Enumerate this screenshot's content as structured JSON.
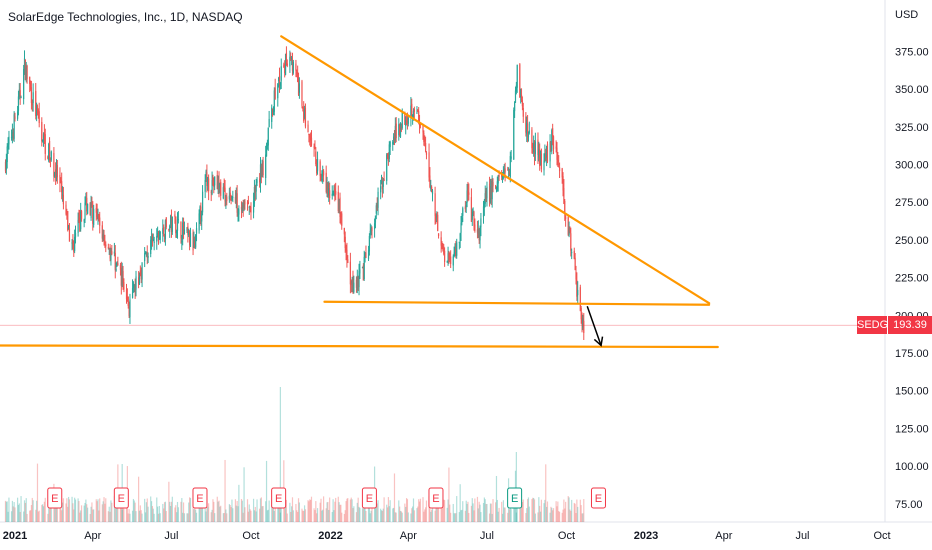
{
  "header": {
    "title": "SolarEdge Technologies, Inc., 1D, NASDAQ"
  },
  "price_axis": {
    "currency": "USD"
  },
  "last_price": {
    "symbol": "SEDG",
    "value": "193.39"
  },
  "colors": {
    "up": "#26a69a",
    "down": "#ef5350",
    "trendline": "#ff9800",
    "arrow": "#000000",
    "earnings": "#f23645",
    "earnings_active": "#089981",
    "last_price": "#f23645"
  },
  "chart_data": {
    "type": "candlestick",
    "yaxis": {
      "label": "USD",
      "ticks": [
        "375.00",
        "350.00",
        "325.00",
        "300.00",
        "275.00",
        "250.00",
        "225.00",
        "200.00",
        "175.00",
        "150.00",
        "125.00",
        "100.00",
        "75.00"
      ],
      "tick_values": [
        375,
        350,
        325,
        300,
        275,
        250,
        225,
        200,
        175,
        150,
        125,
        100,
        75
      ],
      "ylim": [
        65,
        400
      ]
    },
    "xaxis": {
      "ticks": [
        {
          "label": "2021",
          "date": "2021-01-01"
        },
        {
          "label": "Apr",
          "date": "2021-04-01"
        },
        {
          "label": "Jul",
          "date": "2021-07-01"
        },
        {
          "label": "Oct",
          "date": "2021-10-01"
        },
        {
          "label": "2022",
          "date": "2022-01-01"
        },
        {
          "label": "Apr",
          "date": "2022-04-01"
        },
        {
          "label": "Jul",
          "date": "2022-07-01"
        },
        {
          "label": "Oct",
          "date": "2022-10-01"
        },
        {
          "label": "2023",
          "date": "2023-01-01"
        },
        {
          "label": "Apr",
          "date": "2023-04-01"
        },
        {
          "label": "Jul",
          "date": "2023-07-01"
        },
        {
          "label": "Oct",
          "date": "2023-10-01"
        }
      ]
    },
    "price_path": [
      [
        "2020-12-20",
        300
      ],
      [
        "2021-01-05",
        340
      ],
      [
        "2021-01-12",
        365
      ],
      [
        "2021-02-01",
        320
      ],
      [
        "2021-02-20",
        290
      ],
      [
        "2021-03-08",
        245
      ],
      [
        "2021-03-25",
        275
      ],
      [
        "2021-04-12",
        255
      ],
      [
        "2021-05-05",
        225
      ],
      [
        "2021-05-13",
        205
      ],
      [
        "2021-06-01",
        240
      ],
      [
        "2021-06-20",
        255
      ],
      [
        "2021-07-05",
        262
      ],
      [
        "2021-07-28",
        245
      ],
      [
        "2021-08-10",
        290
      ],
      [
        "2021-08-25",
        285
      ],
      [
        "2021-09-15",
        275
      ],
      [
        "2021-10-01",
        270
      ],
      [
        "2021-10-15",
        300
      ],
      [
        "2021-10-28",
        345
      ],
      [
        "2021-11-15",
        375
      ],
      [
        "2021-11-25",
        350
      ],
      [
        "2021-12-10",
        310
      ],
      [
        "2021-12-28",
        282
      ],
      [
        "2022-01-10",
        275
      ],
      [
        "2022-01-25",
        218
      ],
      [
        "2022-02-08",
        230
      ],
      [
        "2022-02-25",
        275
      ],
      [
        "2022-03-10",
        310
      ],
      [
        "2022-03-25",
        330
      ],
      [
        "2022-04-08",
        340
      ],
      [
        "2022-04-20",
        310
      ],
      [
        "2022-05-02",
        270
      ],
      [
        "2022-05-12",
        240
      ],
      [
        "2022-05-25",
        240
      ],
      [
        "2022-06-08",
        280
      ],
      [
        "2022-06-20",
        250
      ],
      [
        "2022-06-30",
        278
      ],
      [
        "2022-07-15",
        290
      ],
      [
        "2022-07-28",
        300
      ],
      [
        "2022-08-05",
        365
      ],
      [
        "2022-08-12",
        330
      ],
      [
        "2022-08-25",
        310
      ],
      [
        "2022-09-05",
        300
      ],
      [
        "2022-09-15",
        320
      ],
      [
        "2022-09-25",
        290
      ],
      [
        "2022-10-05",
        250
      ],
      [
        "2022-10-14",
        215
      ],
      [
        "2022-10-21",
        193
      ]
    ],
    "volume_scale_note": "volume bars at bottom, relative heights",
    "earnings_dates": [
      {
        "date": "2021-02-16",
        "label": "E",
        "active": false
      },
      {
        "date": "2021-05-04",
        "label": "E",
        "active": false
      },
      {
        "date": "2021-08-03",
        "label": "E",
        "active": false
      },
      {
        "date": "2021-11-02",
        "label": "E",
        "active": false
      },
      {
        "date": "2022-02-15",
        "label": "E",
        "active": false
      },
      {
        "date": "2022-05-03",
        "label": "E",
        "active": false
      },
      {
        "date": "2022-08-02",
        "label": "E",
        "active": true
      },
      {
        "date": "2022-11-07",
        "label": "E",
        "active": false
      }
    ],
    "drawings": [
      {
        "type": "trendline",
        "name": "descending-resistance",
        "from": {
          "date": "2021-11-05",
          "price": 385
        },
        "to": {
          "date": "2023-03-15",
          "price": 208
        }
      },
      {
        "type": "trendline",
        "name": "support-line",
        "from": {
          "date": "2021-12-25",
          "price": 209
        },
        "to": {
          "date": "2023-03-15",
          "price": 207
        }
      },
      {
        "type": "trendline",
        "name": "target-line",
        "from": {
          "date": "2020-12-01",
          "price": 180
        },
        "to": {
          "date": "2023-03-25",
          "price": 179
        }
      },
      {
        "type": "arrow",
        "name": "breakdown-arrow",
        "from": {
          "date": "2022-10-25",
          "price": 206
        },
        "to": {
          "date": "2022-11-10",
          "price": 180
        }
      }
    ],
    "last_price_line": 193.39,
    "grid": false,
    "title": "SolarEdge Technologies, Inc., 1D, NASDAQ"
  }
}
